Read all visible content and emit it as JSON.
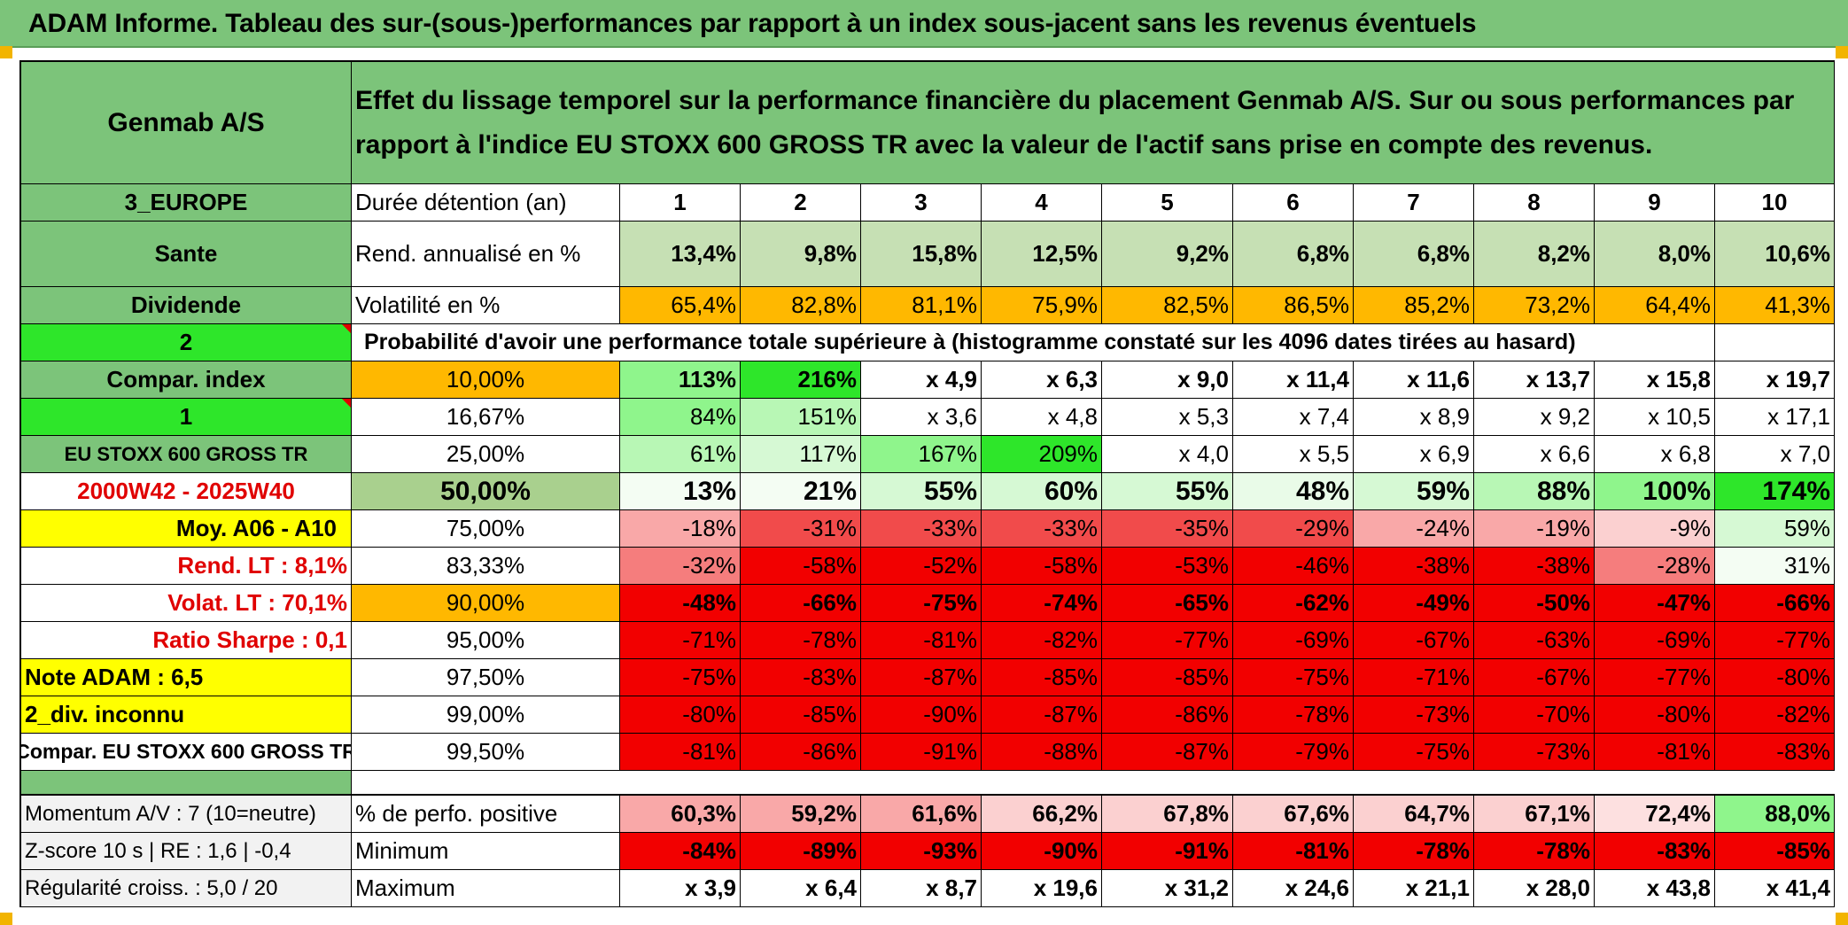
{
  "title": "ADAM Informe. Tableau des sur-(sous-)performances par rapport à un index sous-jacent sans les revenus éventuels",
  "header": {
    "asset": "Genmab A/S",
    "description": "Effet du lissage temporel sur la performance financière du placement Genmab A/S. Sur ou sous performances par rapport à l'indice EU STOXX 600 GROSS TR avec la valeur de l'actif sans prise en compte des revenus."
  },
  "left": {
    "region": "3_EUROPE",
    "sector": "Sante",
    "type": "Dividende",
    "n2": "2",
    "compar_index": "Compar. index",
    "n1": "1",
    "index_name": "EU STOXX 600 GROSS TR",
    "period": "2000W42 - 2025W40",
    "moy": "Moy. A06 - A10",
    "rend_lt": "Rend. LT :   8,1%",
    "volat_lt": "Volat. LT :   70,1%",
    "sharpe": "Ratio Sharpe :    0,1",
    "note": "Note ADAM : 6,5",
    "div": "2_div. inconnu",
    "compar_full": "Compar. EU STOXX 600 GROSS TR",
    "momentum": "Momentum A/V : 7 (10=neutre)",
    "zscore": "Z-score 10 s | RE : 1,6 | -0,4",
    "regularite": "Régularité croiss. : 5,0 / 20"
  },
  "labels": {
    "duree": "Durée détention (an)",
    "rend": "Rend. annualisé en %",
    "vol": "Volatilité en %",
    "proba": "Probabilité d'avoir une performance totale supérieure à (histogramme constaté sur les 4096 dates tirées au hasard)",
    "pos": "% de perfo. positive",
    "min": "Minimum",
    "max": "Maximum"
  },
  "years": [
    "1",
    "2",
    "3",
    "4",
    "5",
    "6",
    "7",
    "8",
    "9",
    "10"
  ],
  "rend": [
    "13,4%",
    "9,8%",
    "15,8%",
    "12,5%",
    "9,2%",
    "6,8%",
    "6,8%",
    "8,2%",
    "8,0%",
    "10,6%"
  ],
  "vol": [
    "65,4%",
    "82,8%",
    "81,1%",
    "75,9%",
    "82,5%",
    "86,5%",
    "85,2%",
    "73,2%",
    "64,4%",
    "41,3%"
  ],
  "rows": [
    {
      "pct": "10,00%",
      "vals": [
        "113%",
        "216%",
        "x 4,9",
        "x 6,3",
        "x 9,0",
        "x 11,4",
        "x 11,6",
        "x 13,7",
        "x 15,8",
        "x 19,7"
      ]
    },
    {
      "pct": "16,67%",
      "vals": [
        "84%",
        "151%",
        "x 3,6",
        "x 4,8",
        "x 5,3",
        "x 7,4",
        "x 8,9",
        "x 9,2",
        "x 10,5",
        "x 17,1"
      ]
    },
    {
      "pct": "25,00%",
      "vals": [
        "61%",
        "117%",
        "167%",
        "209%",
        "x 4,0",
        "x 5,5",
        "x 6,9",
        "x 6,6",
        "x 6,8",
        "x 7,0"
      ]
    },
    {
      "pct": "50,00%",
      "vals": [
        "13%",
        "21%",
        "55%",
        "60%",
        "55%",
        "48%",
        "59%",
        "88%",
        "100%",
        "174%"
      ]
    },
    {
      "pct": "75,00%",
      "vals": [
        "-18%",
        "-31%",
        "-33%",
        "-33%",
        "-35%",
        "-29%",
        "-24%",
        "-19%",
        "-9%",
        "59%"
      ]
    },
    {
      "pct": "83,33%",
      "vals": [
        "-32%",
        "-58%",
        "-52%",
        "-58%",
        "-53%",
        "-46%",
        "-38%",
        "-38%",
        "-28%",
        "31%"
      ]
    },
    {
      "pct": "90,00%",
      "vals": [
        "-48%",
        "-66%",
        "-75%",
        "-74%",
        "-65%",
        "-62%",
        "-49%",
        "-50%",
        "-47%",
        "-66%"
      ]
    },
    {
      "pct": "95,00%",
      "vals": [
        "-71%",
        "-78%",
        "-81%",
        "-82%",
        "-77%",
        "-69%",
        "-67%",
        "-63%",
        "-69%",
        "-77%"
      ]
    },
    {
      "pct": "97,50%",
      "vals": [
        "-75%",
        "-83%",
        "-87%",
        "-85%",
        "-85%",
        "-75%",
        "-71%",
        "-67%",
        "-77%",
        "-80%"
      ]
    },
    {
      "pct": "99,00%",
      "vals": [
        "-80%",
        "-85%",
        "-90%",
        "-87%",
        "-86%",
        "-78%",
        "-73%",
        "-70%",
        "-80%",
        "-82%"
      ]
    },
    {
      "pct": "99,50%",
      "vals": [
        "-81%",
        "-86%",
        "-91%",
        "-88%",
        "-87%",
        "-79%",
        "-75%",
        "-73%",
        "-81%",
        "-83%"
      ]
    }
  ],
  "pos": [
    "60,3%",
    "59,2%",
    "61,6%",
    "66,2%",
    "67,8%",
    "67,6%",
    "64,7%",
    "67,1%",
    "72,4%",
    "88,0%"
  ],
  "min": [
    "-84%",
    "-89%",
    "-93%",
    "-90%",
    "-91%",
    "-81%",
    "-78%",
    "-78%",
    "-83%",
    "-85%"
  ],
  "max": [
    "x 3,9",
    "x 6,4",
    "x 8,7",
    "x 19,6",
    "x 31,2",
    "x 24,6",
    "x 21,1",
    "x 28,0",
    "x 43,8",
    "x 41,4"
  ],
  "colors": {
    "header_green": "#7cc47a",
    "rend_green": "#c6e0b4",
    "vol_orange": "#ffb800",
    "bright_green": "#2ee62a",
    "deep_red": "#f20000",
    "label_red": "#e00000",
    "yellow": "#ffff00"
  }
}
